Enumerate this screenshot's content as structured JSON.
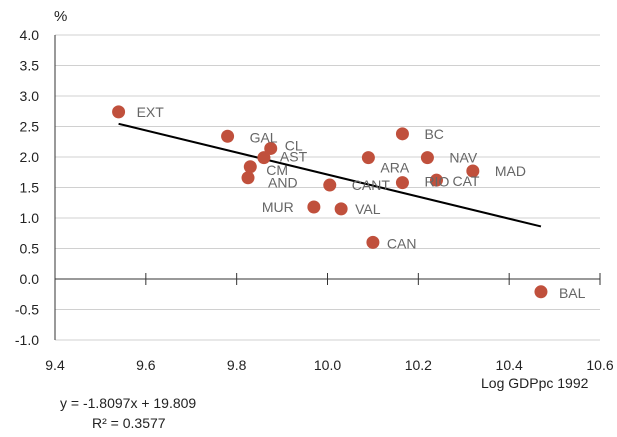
{
  "chart_data": {
    "type": "scatter",
    "ylabel": "%",
    "xlabel": "Log GDPpc 1992",
    "xlim": [
      9.4,
      10.6
    ],
    "ylim": [
      -1.0,
      4.0
    ],
    "xticks": [
      "9.4",
      "9.6",
      "9.8",
      "10.0",
      "10.2",
      "10.4",
      "10.6"
    ],
    "yticks": [
      "4.0",
      "3.5",
      "3.0",
      "2.5",
      "2.0",
      "1.5",
      "1.0",
      "0.5",
      "0.0",
      "-0.5",
      "-1.0"
    ],
    "grid": "horizontal",
    "points": [
      {
        "label": "EXT",
        "x": 9.54,
        "y": 2.74
      },
      {
        "label": "GAL",
        "x": 9.78,
        "y": 2.34
      },
      {
        "label": "CL",
        "x": 9.875,
        "y": 2.14
      },
      {
        "label": "AST",
        "x": 9.86,
        "y": 1.99
      },
      {
        "label": "CM",
        "x": 9.83,
        "y": 1.84
      },
      {
        "label": "AND",
        "x": 9.825,
        "y": 1.66
      },
      {
        "label": "MUR",
        "x": 9.97,
        "y": 1.18
      },
      {
        "label": "CANT",
        "x": 10.005,
        "y": 1.54
      },
      {
        "label": "VAL",
        "x": 10.03,
        "y": 1.15
      },
      {
        "label": "ARA",
        "x": 10.09,
        "y": 1.99
      },
      {
        "label": "CAN",
        "x": 10.1,
        "y": 0.6
      },
      {
        "label": "BC",
        "x": 10.165,
        "y": 2.38
      },
      {
        "label": "RIO",
        "x": 10.165,
        "y": 1.58
      },
      {
        "label": "NAV",
        "x": 10.22,
        "y": 1.99
      },
      {
        "label": "CAT",
        "x": 10.24,
        "y": 1.62
      },
      {
        "label": "MAD",
        "x": 10.32,
        "y": 1.77
      },
      {
        "label": "BAL",
        "x": 10.47,
        "y": -0.21
      }
    ],
    "trendline": {
      "slope": -1.8097,
      "intercept": 19.809,
      "x_range": [
        9.54,
        10.47
      ]
    },
    "equation": "y = -1.8097x + 19.809",
    "r_squared": "R² = 0.3577",
    "colors": {
      "marker": "#c0503c",
      "line": "#000000",
      "grid": "#d0d0d0",
      "axis": "#333333",
      "point_label": "#666666"
    }
  }
}
